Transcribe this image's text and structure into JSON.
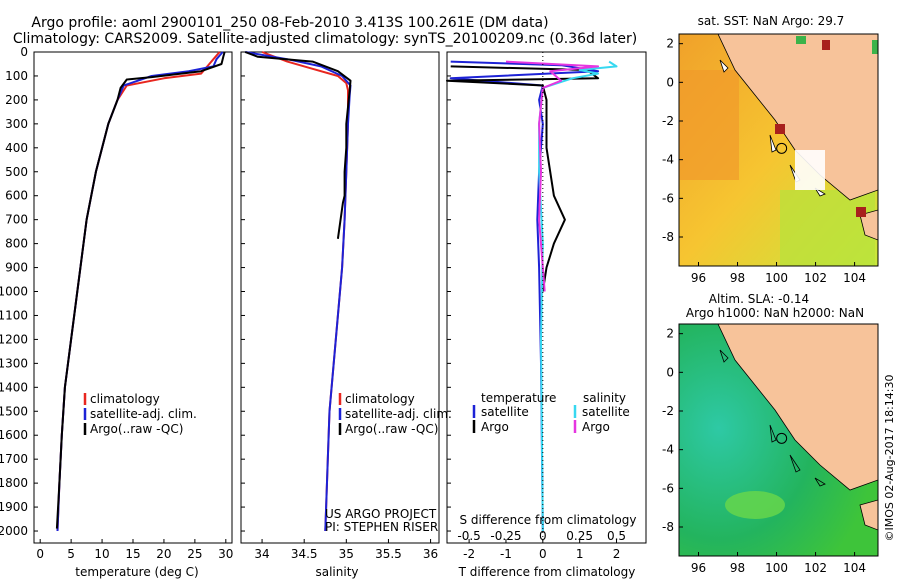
{
  "header": {
    "line1": "Argo profile: aoml 2900101_250 08-Feb-2010 3.413S 100.261E (DM data)",
    "line2": "Climatology: CARS2009. Satellite-adjusted climatology: synTS_20100209.nc (0.36d later)"
  },
  "colors": {
    "climatology": "#e8261f",
    "satellite": "#1d22d6",
    "argo": "#000000",
    "sal_satellite": "#37d8f0",
    "sal_argo": "#e636e0"
  },
  "depth_ticks": [
    "0",
    "100",
    "200",
    "300",
    "400",
    "500",
    "600",
    "700",
    "800",
    "900",
    "1000",
    "1100",
    "1200",
    "1300",
    "1400",
    "1500",
    "1600",
    "1700",
    "1800",
    "1900",
    "2000"
  ],
  "legend_labels": [
    "climatology",
    "satellite-adj. clim.",
    "Argo(..raw -QC)"
  ],
  "chart_data": [
    {
      "type": "line",
      "id": "temperature",
      "xlabel": "temperature (deg C)",
      "xlim": [
        -1,
        31
      ],
      "ylim": [
        2050,
        0
      ],
      "xticks": [
        0,
        5,
        10,
        15,
        20,
        25,
        30
      ],
      "series": [
        {
          "name": "climatology",
          "x": [
            29,
            28,
            27,
            26,
            20,
            14,
            12.5,
            11,
            9,
            7.5,
            6.5,
            6,
            5.5,
            5,
            4.5,
            4,
            3.5,
            3.1,
            2.8
          ],
          "y": [
            0,
            30,
            60,
            90,
            110,
            140,
            200,
            300,
            500,
            700,
            900,
            1000,
            1100,
            1200,
            1300,
            1400,
            1600,
            1800,
            2000
          ]
        },
        {
          "name": "satellite-adj. clim.",
          "x": [
            29.5,
            28.5,
            28,
            24,
            18,
            13.5,
            12.5,
            11,
            9,
            7.5,
            6.5,
            6,
            5.5,
            5,
            4.5,
            4,
            3.5,
            3.1,
            2.8
          ],
          "y": [
            0,
            30,
            60,
            80,
            100,
            140,
            200,
            300,
            500,
            700,
            900,
            1000,
            1100,
            1200,
            1300,
            1400,
            1600,
            1800,
            2000
          ]
        },
        {
          "name": "Argo(..raw -QC)",
          "x": [
            29.8,
            29.6,
            29.3,
            26,
            18,
            14,
            13,
            12.5,
            11,
            9,
            7.5,
            6.5,
            6,
            5.5,
            5,
            4.5,
            4,
            3.5,
            3.1,
            2.7
          ],
          "y": [
            0,
            20,
            50,
            80,
            105,
            115,
            150,
            200,
            300,
            500,
            700,
            900,
            1000,
            1100,
            1200,
            1300,
            1400,
            1600,
            1800,
            1990
          ]
        }
      ]
    },
    {
      "type": "line",
      "id": "salinity",
      "xlabel": "salinity",
      "xlim": [
        33.75,
        36.1
      ],
      "ylim": [
        2050,
        0
      ],
      "xticks": [
        34,
        34.5,
        35,
        35.5,
        36
      ],
      "series": [
        {
          "name": "climatology",
          "x": [
            34.0,
            34.3,
            34.6,
            34.9,
            35.0,
            35.02,
            35.02,
            35.0,
            34.98,
            34.95,
            34.9,
            34.85,
            34.8,
            34.78,
            34.75
          ],
          "y": [
            0,
            40,
            70,
            100,
            130,
            160,
            300,
            500,
            700,
            900,
            1100,
            1300,
            1500,
            1700,
            2000
          ]
        },
        {
          "name": "satellite-adj. clim.",
          "x": [
            33.8,
            34.3,
            34.7,
            34.95,
            35.05,
            35.04,
            35.02,
            35.0,
            34.98,
            34.95,
            34.9,
            34.85,
            34.8,
            34.78,
            34.75
          ],
          "y": [
            0,
            30,
            60,
            100,
            140,
            180,
            300,
            500,
            700,
            900,
            1100,
            1300,
            1500,
            1700,
            2000
          ]
        },
        {
          "name": "Argo(..raw -QC)",
          "x": [
            33.8,
            33.95,
            34.6,
            34.9,
            35.05,
            35.04,
            35.0,
            35.0,
            34.98,
            34.98,
            34.96,
            34.9
          ],
          "y": [
            0,
            20,
            40,
            80,
            120,
            160,
            300,
            400,
            500,
            600,
            630,
            780
          ]
        }
      ],
      "credit": [
        "US ARGO PROJECT",
        "PI: STEPHEN RISER"
      ]
    },
    {
      "type": "line",
      "id": "difference",
      "xlabel": "T difference from climatology",
      "xlabel_top": "S difference from climatology",
      "xlim": [
        -2.6,
        2.8
      ],
      "ylim": [
        2050,
        0
      ],
      "xticks": [
        -2,
        -1,
        0,
        1,
        2
      ],
      "xticks_top_labels": [
        "-0.5",
        "-0.25",
        "0",
        "0.25",
        "0.5"
      ],
      "legend_headers": [
        "temperature",
        "salinity"
      ],
      "legend_items": [
        "satellite",
        "Argo",
        "satellite",
        "Argo"
      ],
      "series": [
        {
          "name": "temperature satellite",
          "x": [
            -2.5,
            0.5,
            1.5,
            -2.5,
            0,
            -0.1,
            0,
            -0.1,
            -0.15,
            -0.1,
            -0.05,
            0
          ],
          "y": [
            40,
            55,
            80,
            110,
            140,
            200,
            300,
            500,
            700,
            900,
            1300,
            2000
          ]
        },
        {
          "name": "temperature Argo",
          "x": [
            -2.5,
            1.2,
            1.5,
            -2.6,
            0,
            0.1,
            0.1,
            0.3,
            0.6,
            0.3,
            0.1,
            0
          ],
          "y": [
            60,
            75,
            110,
            120,
            140,
            200,
            400,
            600,
            700,
            800,
            900,
            1000
          ]
        },
        {
          "name": "salinity satellite",
          "x": [
            1.8,
            2.0,
            1.0,
            1.5,
            0.8,
            0,
            -0.1,
            -0.1,
            0,
            -0.05,
            0
          ],
          "y": [
            40,
            60,
            75,
            90,
            110,
            150,
            300,
            500,
            800,
            1200,
            2000
          ]
        },
        {
          "name": "salinity Argo",
          "x": [
            -1.0,
            1.5,
            0.2,
            0.5,
            0,
            -0.1,
            -0.05,
            -0.1,
            0.05
          ],
          "y": [
            40,
            60,
            80,
            120,
            150,
            300,
            500,
            700,
            1000
          ]
        }
      ]
    },
    {
      "type": "heatmap",
      "id": "sst_map",
      "title": "sat. SST: NaN Argo: 29.7",
      "xlim": [
        95,
        105.2
      ],
      "ylim": [
        -9.5,
        2.5
      ],
      "xticks": [
        96,
        98,
        100,
        102,
        104
      ],
      "yticks": [
        2,
        0,
        -2,
        -4,
        -6,
        -8
      ],
      "float_position": [
        100.261,
        -3.413
      ]
    },
    {
      "type": "heatmap",
      "id": "sla_map",
      "title_lines": [
        "Altim. SLA: -0.14",
        "Argo h1000: NaN h2000: NaN"
      ],
      "xlim": [
        95,
        105.2
      ],
      "ylim": [
        -9.5,
        2.5
      ],
      "xticks": [
        96,
        98,
        100,
        102,
        104
      ],
      "yticks": [
        2,
        0,
        -2,
        -4,
        -6,
        -8
      ],
      "float_position": [
        100.261,
        -3.413
      ]
    }
  ],
  "footer": {
    "credit": "©IMOS 02-Aug-2017 18:14:30"
  }
}
